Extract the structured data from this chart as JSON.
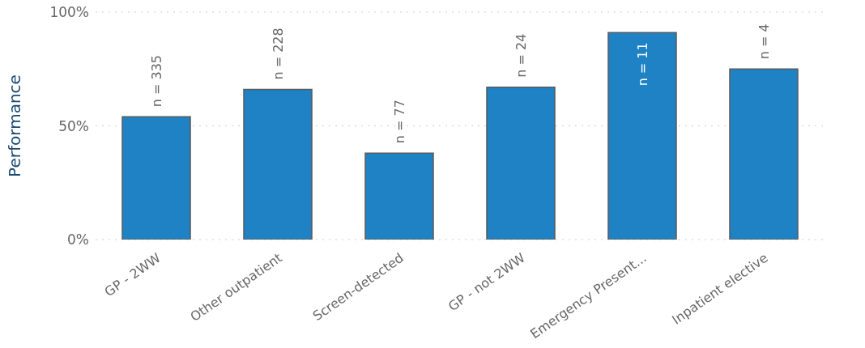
{
  "chart_data": {
    "type": "bar",
    "ylabel": "Performance",
    "categories": [
      "GP - 2WW",
      "Other outpatient",
      "Screen-detected",
      "GP - not 2WW",
      "Emergency Present...",
      "Inpatient elective"
    ],
    "values": [
      54,
      66,
      38,
      67,
      91,
      75
    ],
    "color": "#1f82c4",
    "ylim": [
      0,
      100
    ],
    "yticks": [
      {
        "value": 0,
        "label": "0%"
      },
      {
        "value": 50,
        "label": "50%"
      },
      {
        "value": 100,
        "label": "100%"
      }
    ],
    "grid": "y",
    "legend": false,
    "annotations": [
      {
        "text": "n = 335",
        "x": "GP - 2WW",
        "y": 54
      },
      {
        "text": "n = 228",
        "x": "Other outpatient",
        "y": 66
      },
      {
        "text": "n = 77",
        "x": "Screen-detected",
        "y": 38
      },
      {
        "text": "n = 24",
        "x": "GP - not 2WW",
        "y": 67
      },
      {
        "text": "n = 11",
        "x": "Emergency Present...",
        "y": 91
      },
      {
        "text": "n = 4",
        "x": "Inpatient elective",
        "y": 75
      }
    ]
  }
}
